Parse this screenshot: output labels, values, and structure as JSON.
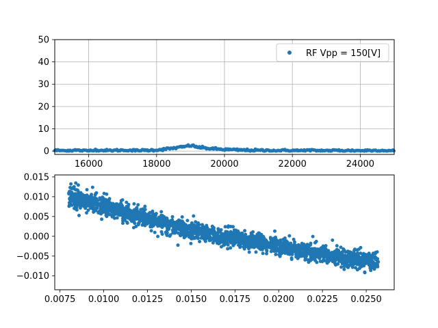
{
  "chart_data": [
    {
      "type": "scatter",
      "title": "",
      "xlabel": "",
      "ylabel": "",
      "xlim": [
        15000,
        25000
      ],
      "ylim": [
        -1.5,
        50
      ],
      "grid": true,
      "legend_position": "top-right",
      "x_ticks": [
        16000,
        18000,
        20000,
        22000,
        24000
      ],
      "x_tick_labels": [
        "16000",
        "18000",
        "20000",
        "22000",
        "24000"
      ],
      "y_ticks": [
        0,
        10,
        20,
        30,
        40,
        50
      ],
      "y_tick_labels": [
        "0",
        "10",
        "20",
        "30",
        "40",
        "50"
      ],
      "marker_color": "#1f77b4",
      "series": [
        {
          "name": "RF Vpp = 150[V]",
          "x": [
            15000,
            15300,
            15600,
            15900,
            16200,
            16500,
            16800,
            17100,
            17400,
            17700,
            18000,
            18200,
            18400,
            18600,
            18800,
            18900,
            19000,
            19100,
            19200,
            19400,
            19600,
            19800,
            20000,
            20200,
            20400,
            20600,
            20800,
            21000,
            21300,
            21600,
            21900,
            22200,
            22500,
            22800,
            23100,
            23400,
            23700,
            24000,
            24300,
            24600,
            24900
          ],
          "y": [
            0.3,
            0.2,
            0.4,
            0.1,
            0.5,
            0.2,
            0.3,
            0.4,
            0.2,
            0.3,
            0.5,
            0.8,
            1.1,
            1.5,
            1.9,
            2.3,
            2.5,
            2.2,
            1.8,
            1.4,
            1.1,
            0.9,
            0.7,
            0.6,
            0.5,
            0.4,
            0.4,
            0.3,
            0.3,
            0.2,
            0.3,
            0.2,
            0.3,
            0.2,
            0.2,
            0.3,
            0.2,
            0.2,
            0.3,
            0.2,
            0.2
          ]
        }
      ]
    },
    {
      "type": "scatter",
      "title": "",
      "xlabel": "",
      "ylabel": "",
      "xlim": [
        0.0072,
        0.0266
      ],
      "ylim": [
        -0.0135,
        0.0155
      ],
      "grid": false,
      "x_ticks": [
        0.0075,
        0.01,
        0.0125,
        0.015,
        0.0175,
        0.02,
        0.0225,
        0.025
      ],
      "x_tick_labels": [
        "0.0075",
        "0.0100",
        "0.0125",
        "0.0150",
        "0.0175",
        "0.0200",
        "0.0225",
        "0.0250"
      ],
      "y_ticks": [
        -0.01,
        -0.005,
        0.0,
        0.005,
        0.01,
        0.015
      ],
      "y_tick_labels": [
        "−0.010",
        "−0.005",
        "0.000",
        "0.005",
        "0.010",
        "0.015"
      ],
      "marker_color": "#1f77b4",
      "series": [
        {
          "x": [
            0.008,
            0.009,
            0.01,
            0.011,
            0.012,
            0.013,
            0.014,
            0.015,
            0.016,
            0.017,
            0.018,
            0.019,
            0.02,
            0.021,
            0.022,
            0.023,
            0.024,
            0.025,
            0.0257
          ],
          "y": [
            0.01,
            0.0088,
            0.0075,
            0.0062,
            0.005,
            0.0038,
            0.0026,
            0.0016,
            0.0006,
            -0.0002,
            -0.001,
            -0.0018,
            -0.0026,
            -0.0034,
            -0.0042,
            -0.005,
            -0.0056,
            -0.0062,
            -0.0066
          ],
          "spread": [
            0.0022,
            0.0022,
            0.0021,
            0.0021,
            0.002,
            0.002,
            0.002,
            0.002,
            0.0019,
            0.0019,
            0.0019,
            0.0018,
            0.0018,
            0.0018,
            0.0018,
            0.0018,
            0.0018,
            0.0019,
            0.002
          ]
        }
      ]
    }
  ]
}
